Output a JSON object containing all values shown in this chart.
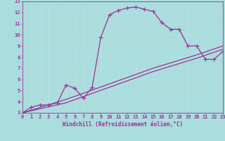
{
  "line1_x": [
    0,
    1,
    2,
    3,
    4,
    5,
    6,
    7,
    8,
    9,
    10,
    11,
    12,
    13,
    14,
    15,
    16,
    17,
    18,
    19,
    20,
    21,
    22,
    23
  ],
  "line1_y": [
    3.0,
    3.5,
    3.7,
    3.7,
    3.9,
    5.5,
    5.2,
    4.3,
    5.3,
    9.8,
    11.8,
    12.2,
    12.4,
    12.5,
    12.3,
    12.1,
    11.1,
    10.5,
    10.5,
    9.0,
    9.0,
    7.8,
    7.8,
    8.5
  ],
  "line2_x": [
    0,
    5,
    10,
    15,
    20,
    23
  ],
  "line2_y": [
    3.0,
    3.9,
    5.3,
    6.7,
    7.9,
    8.7
  ],
  "line3_x": [
    0,
    5,
    10,
    15,
    20,
    23
  ],
  "line3_y": [
    3.0,
    4.2,
    5.6,
    7.0,
    8.2,
    9.0
  ],
  "line_color": "#993399",
  "bg_color": "#aadddd",
  "grid_color": "#cceeee",
  "xlabel": "Windchill (Refroidissement éolien,°C)",
  "xlim": [
    0,
    23
  ],
  "ylim": [
    3,
    13
  ],
  "xticks": [
    0,
    1,
    2,
    3,
    4,
    5,
    6,
    7,
    8,
    9,
    10,
    11,
    12,
    13,
    14,
    15,
    16,
    17,
    18,
    19,
    20,
    21,
    22,
    23
  ],
  "yticks": [
    3,
    4,
    5,
    6,
    7,
    8,
    9,
    10,
    11,
    12,
    13
  ],
  "marker": "+",
  "markersize": 4,
  "linewidth": 0.9
}
